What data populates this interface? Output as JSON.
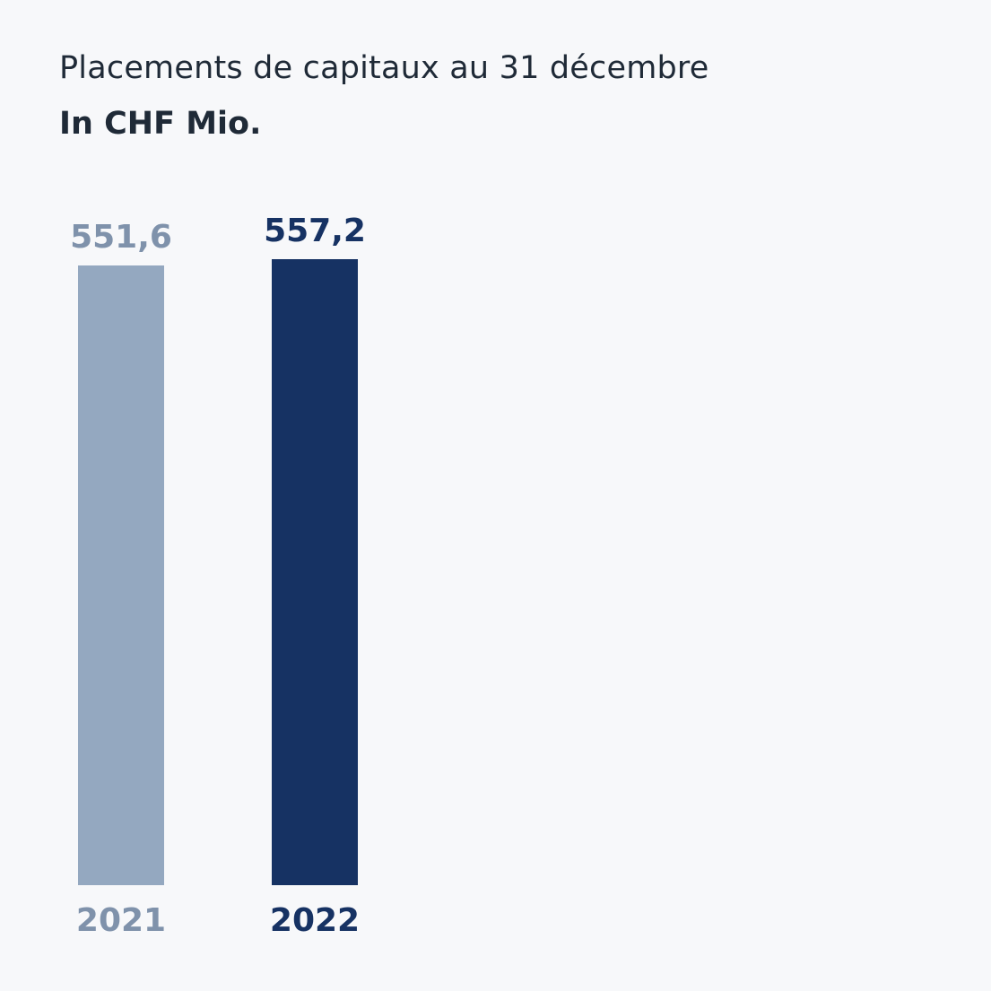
{
  "chart_data": {
    "type": "bar",
    "title": "Placements de capitaux au 31 décembre",
    "subtitle": "In CHF Mio.",
    "categories": [
      "2021",
      "2022"
    ],
    "values": [
      551.6,
      557.2
    ],
    "value_labels": [
      "551,6",
      "557,2"
    ],
    "colors": [
      "#94a8c0",
      "#163263"
    ],
    "label_colors": [
      "#7f92ab",
      "#163263"
    ],
    "ylim": [
      0,
      557.2
    ],
    "grid": false,
    "legend": "none"
  }
}
